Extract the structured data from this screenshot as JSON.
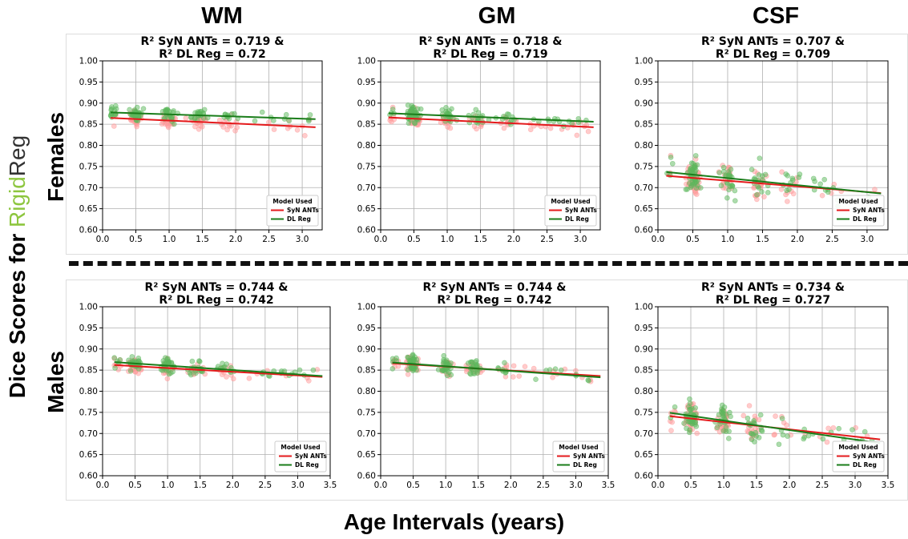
{
  "columns": [
    "WM",
    "GM",
    "CSF"
  ],
  "rows": [
    "Females",
    "Males"
  ],
  "y_title": {
    "prefix": "Dice Scores for ",
    "rigid": "Rigid",
    "reg": "Reg"
  },
  "x_title": "Age Intervals (years)",
  "legend": {
    "title": "Model Used",
    "items": [
      {
        "name": "SyN ANTs",
        "color": "#e41a1c"
      },
      {
        "name": "DL Reg",
        "color": "#1a7d1a"
      }
    ]
  },
  "colors": {
    "syn": "#e41a1c",
    "syn_point": "#ff9a9a",
    "dl": "#1a7d1a",
    "dl_point": "#5cb85c",
    "grid": "#b0b0b0"
  },
  "chart_data": [
    {
      "type": "scatter",
      "row": "Females",
      "column": "WM",
      "title_line1": "R² SyN ANTs = 0.719 &",
      "title_line2": "R² DL Reg = 0.72",
      "xlim": [
        0,
        3.3
      ],
      "xticks": [
        "0.0",
        "0.5",
        "1.0",
        "1.5",
        "2.0",
        "2.5",
        "3.0"
      ],
      "ylim": [
        0.6,
        1.0
      ],
      "yticks": [
        "0.60",
        "0.65",
        "0.70",
        "0.75",
        "0.80",
        "0.85",
        "0.90",
        "0.95",
        "1.00"
      ],
      "grid": true,
      "legend_position": "lower-right",
      "series": [
        {
          "name": "SyN ANTs",
          "fit": [
            [
              0.12,
              0.865
            ],
            [
              3.2,
              0.843
            ]
          ],
          "center": 0.858,
          "spread": 0.012
        },
        {
          "name": "DL Reg",
          "fit": [
            [
              0.12,
              0.878
            ],
            [
              3.2,
              0.862
            ]
          ],
          "center": 0.873,
          "spread": 0.011
        }
      ]
    },
    {
      "type": "scatter",
      "row": "Females",
      "column": "GM",
      "title_line1": "R² SyN ANTs = 0.718 &",
      "title_line2": "R² DL Reg = 0.719",
      "xlim": [
        0,
        3.3
      ],
      "xticks": [
        "0.0",
        "0.5",
        "1.0",
        "1.5",
        "2.0",
        "2.5",
        "3.0"
      ],
      "ylim": [
        0.6,
        1.0
      ],
      "yticks": [
        "0.60",
        "0.65",
        "0.70",
        "0.75",
        "0.80",
        "0.85",
        "0.90",
        "0.95",
        "1.00"
      ],
      "grid": true,
      "legend_position": "lower-right",
      "series": [
        {
          "name": "SyN ANTs",
          "fit": [
            [
              0.12,
              0.866
            ],
            [
              3.2,
              0.843
            ]
          ],
          "center": 0.858,
          "spread": 0.013
        },
        {
          "name": "DL Reg",
          "fit": [
            [
              0.12,
              0.876
            ],
            [
              3.2,
              0.856
            ]
          ],
          "center": 0.87,
          "spread": 0.013
        }
      ]
    },
    {
      "type": "scatter",
      "row": "Females",
      "column": "CSF",
      "title_line1": "R² SyN ANTs = 0.707 &",
      "title_line2": "R² DL Reg = 0.709",
      "xlim": [
        0,
        3.3
      ],
      "xticks": [
        "0.0",
        "0.5",
        "1.0",
        "1.5",
        "2.0",
        "2.5",
        "3.0"
      ],
      "ylim": [
        0.6,
        1.0
      ],
      "yticks": [
        "0.60",
        "0.65",
        "0.70",
        "0.75",
        "0.80",
        "0.85",
        "0.90",
        "0.95",
        "1.00"
      ],
      "grid": true,
      "legend_position": "lower-right",
      "series": [
        {
          "name": "SyN ANTs",
          "fit": [
            [
              0.12,
              0.728
            ],
            [
              3.2,
              0.687
            ]
          ],
          "center": 0.712,
          "spread": 0.027
        },
        {
          "name": "DL Reg",
          "fit": [
            [
              0.12,
              0.737
            ],
            [
              3.2,
              0.686
            ]
          ],
          "center": 0.716,
          "spread": 0.027
        }
      ]
    },
    {
      "type": "scatter",
      "row": "Males",
      "column": "WM",
      "title_line1": "R² SyN ANTs = 0.744 &",
      "title_line2": "R² DL Reg = 0.742",
      "xlim": [
        0,
        3.5
      ],
      "xticks": [
        "0.0",
        "0.5",
        "1.0",
        "1.5",
        "2.0",
        "2.5",
        "3.0",
        "3.5"
      ],
      "ylim": [
        0.6,
        1.0
      ],
      "yticks": [
        "0.60",
        "0.65",
        "0.70",
        "0.75",
        "0.80",
        "0.85",
        "0.90",
        "0.95",
        "1.00"
      ],
      "grid": true,
      "legend_position": "lower-right",
      "series": [
        {
          "name": "SyN ANTs",
          "fit": [
            [
              0.18,
              0.862
            ],
            [
              3.38,
              0.834
            ]
          ],
          "center": 0.852,
          "spread": 0.012
        },
        {
          "name": "DL Reg",
          "fit": [
            [
              0.18,
              0.869
            ],
            [
              3.38,
              0.836
            ]
          ],
          "center": 0.856,
          "spread": 0.012
        }
      ]
    },
    {
      "type": "scatter",
      "row": "Males",
      "column": "GM",
      "title_line1": "R² SyN ANTs = 0.744 &",
      "title_line2": "R² DL Reg = 0.742",
      "xlim": [
        0,
        3.5
      ],
      "xticks": [
        "0.0",
        "0.5",
        "1.0",
        "1.5",
        "2.0",
        "2.5",
        "3.0",
        "3.5"
      ],
      "ylim": [
        0.6,
        1.0
      ],
      "yticks": [
        "0.60",
        "0.65",
        "0.70",
        "0.75",
        "0.80",
        "0.85",
        "0.90",
        "0.95",
        "1.00"
      ],
      "grid": true,
      "legend_position": "lower-right",
      "series": [
        {
          "name": "SyN ANTs",
          "fit": [
            [
              0.18,
              0.866
            ],
            [
              3.38,
              0.836
            ]
          ],
          "center": 0.855,
          "spread": 0.013
        },
        {
          "name": "DL Reg",
          "fit": [
            [
              0.18,
              0.868
            ],
            [
              3.38,
              0.833
            ]
          ],
          "center": 0.857,
          "spread": 0.013
        }
      ]
    },
    {
      "type": "scatter",
      "row": "Males",
      "column": "CSF",
      "title_line1": "R² SyN ANTs = 0.734 &",
      "title_line2": "R² DL Reg = 0.727",
      "xlim": [
        0,
        3.5
      ],
      "xticks": [
        "0.0",
        "0.5",
        "1.0",
        "1.5",
        "2.0",
        "2.5",
        "3.0",
        "3.5"
      ],
      "ylim": [
        0.6,
        1.0
      ],
      "yticks": [
        "0.60",
        "0.65",
        "0.70",
        "0.75",
        "0.80",
        "0.85",
        "0.90",
        "0.95",
        "1.00"
      ],
      "grid": true,
      "legend_position": "lower-right",
      "series": [
        {
          "name": "SyN ANTs",
          "fit": [
            [
              0.18,
              0.741
            ],
            [
              3.38,
              0.686
            ]
          ],
          "center": 0.718,
          "spread": 0.026
        },
        {
          "name": "DL Reg",
          "fit": [
            [
              0.18,
              0.749
            ],
            [
              3.38,
              0.677
            ]
          ],
          "center": 0.72,
          "spread": 0.026
        }
      ]
    }
  ]
}
